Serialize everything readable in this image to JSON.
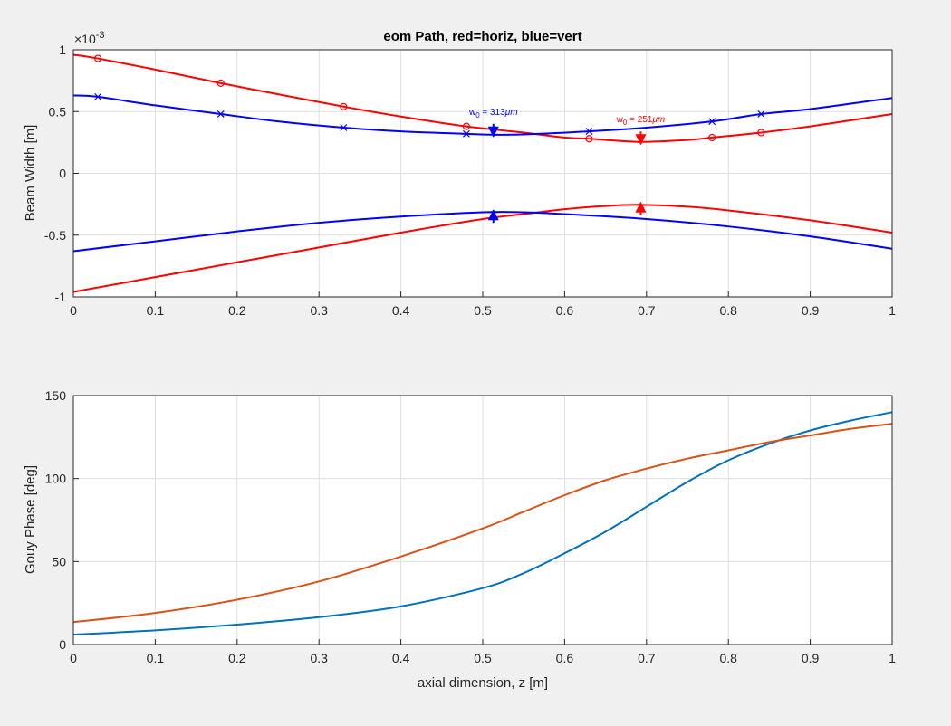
{
  "chart_data": [
    {
      "type": "line",
      "title": "eom Path, red=horiz, blue=vert",
      "xlabel": "",
      "ylabel": "Beam Width [m]",
      "exponent_label": "×10",
      "exponent_power": "-3",
      "xlim": [
        0,
        1
      ],
      "ylim": [
        -1,
        1
      ],
      "x_ticks": [
        "0",
        "0.1",
        "0.2",
        "0.3",
        "0.4",
        "0.5",
        "0.6",
        "0.7",
        "0.8",
        "0.9",
        "1"
      ],
      "y_ticks": [
        "-1",
        "-0.5",
        "0",
        "0.5",
        "1"
      ],
      "grid": true,
      "series": [
        {
          "color": "#ff0000",
          "marker": "o",
          "x": [
            0,
            0.03,
            0.1,
            0.18,
            0.25,
            0.33,
            0.4,
            0.48,
            0.55,
            0.6,
            0.63,
            0.69,
            0.75,
            0.78,
            0.84,
            0.9,
            1.0
          ],
          "y": [
            0.96,
            0.93,
            0.84,
            0.73,
            0.64,
            0.54,
            0.46,
            0.38,
            0.33,
            0.29,
            0.28,
            0.255,
            0.27,
            0.29,
            0.33,
            0.38,
            0.48
          ],
          "marker_x": [
            0.03,
            0.18,
            0.33,
            0.48,
            0.63,
            0.78,
            0.84
          ]
        },
        {
          "color": "#0000ff",
          "marker": "x",
          "x": [
            0,
            0.03,
            0.1,
            0.18,
            0.25,
            0.33,
            0.4,
            0.48,
            0.51,
            0.55,
            0.63,
            0.7,
            0.78,
            0.84,
            0.9,
            1.0
          ],
          "y": [
            0.63,
            0.62,
            0.55,
            0.48,
            0.42,
            0.37,
            0.34,
            0.32,
            0.313,
            0.315,
            0.34,
            0.37,
            0.42,
            0.48,
            0.52,
            0.61
          ],
          "marker_x": [
            0.03,
            0.18,
            0.33,
            0.48,
            0.63,
            0.78,
            0.84
          ]
        },
        {
          "color": "#ff0000",
          "marker": "none",
          "x": [
            0,
            0.1,
            0.2,
            0.3,
            0.4,
            0.5,
            0.55,
            0.6,
            0.65,
            0.69,
            0.75,
            0.8,
            0.9,
            1.0
          ],
          "y": [
            -0.96,
            -0.84,
            -0.72,
            -0.6,
            -0.48,
            -0.37,
            -0.33,
            -0.29,
            -0.265,
            -0.255,
            -0.27,
            -0.3,
            -0.38,
            -0.48
          ]
        },
        {
          "color": "#0000ff",
          "marker": "none",
          "x": [
            0,
            0.1,
            0.2,
            0.3,
            0.4,
            0.5,
            0.55,
            0.6,
            0.7,
            0.8,
            0.9,
            1.0
          ],
          "y": [
            -0.63,
            -0.55,
            -0.47,
            -0.4,
            -0.35,
            -0.315,
            -0.315,
            -0.33,
            -0.37,
            -0.43,
            -0.51,
            -0.61
          ]
        }
      ],
      "waists": [
        {
          "x": 0.513,
          "y": 0.313,
          "color": "#0000ff",
          "label_w": "w",
          "label_sub": "0",
          "label_val": " = 313",
          "label_unit": "μm"
        },
        {
          "x": 0.693,
          "y": 0.251,
          "color": "#ff0000",
          "label_w": "w",
          "label_sub": "0",
          "label_val": " = 251",
          "label_unit": "μm"
        }
      ]
    },
    {
      "type": "line",
      "title": "",
      "xlabel": "axial dimension, z [m]",
      "ylabel": "Gouy Phase [deg]",
      "xlim": [
        0,
        1
      ],
      "ylim": [
        0,
        150
      ],
      "x_ticks": [
        "0",
        "0.1",
        "0.2",
        "0.3",
        "0.4",
        "0.5",
        "0.6",
        "0.7",
        "0.8",
        "0.9",
        "1"
      ],
      "y_ticks": [
        "0",
        "50",
        "100",
        "150"
      ],
      "grid": true,
      "series": [
        {
          "color": "#0072bd",
          "x": [
            0,
            0.1,
            0.2,
            0.3,
            0.4,
            0.5,
            0.55,
            0.6,
            0.65,
            0.7,
            0.75,
            0.8,
            0.85,
            0.9,
            0.95,
            1.0
          ],
          "y": [
            6,
            8.5,
            12,
            16.5,
            23,
            34,
            43,
            55,
            68,
            83,
            98,
            111,
            121,
            129,
            135,
            140
          ]
        },
        {
          "color": "#d95319",
          "x": [
            0,
            0.1,
            0.2,
            0.3,
            0.4,
            0.5,
            0.55,
            0.6,
            0.65,
            0.7,
            0.75,
            0.8,
            0.85,
            0.9,
            0.95,
            1.0
          ],
          "y": [
            13.5,
            19,
            27,
            38,
            53,
            70,
            80,
            90,
            99,
            106,
            112,
            117,
            122,
            126,
            130,
            133
          ]
        }
      ]
    }
  ]
}
